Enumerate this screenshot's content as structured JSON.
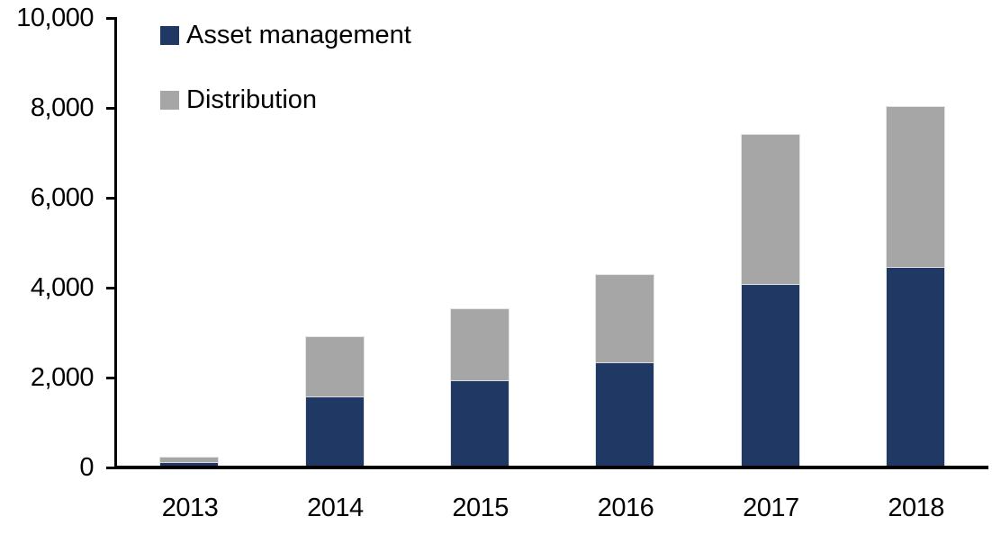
{
  "chart_data": {
    "type": "bar",
    "variant": "stacked-vertical",
    "title": "",
    "xlabel": "",
    "ylabel": "",
    "categories": [
      "2013",
      "2014",
      "2015",
      "2016",
      "2017",
      "2018"
    ],
    "series": [
      {
        "name": "Asset management",
        "color": "#1F3864",
        "values": [
          80,
          1550,
          1900,
          2300,
          4040,
          4420
        ]
      },
      {
        "name": "Distribution",
        "color": "#A6A6A6",
        "values": [
          110,
          1320,
          1600,
          1950,
          3340,
          3580
        ]
      }
    ],
    "stacked_totals": [
      190,
      2870,
      3500,
      4250,
      7380,
      8000
    ],
    "ylim": [
      0,
      10000
    ],
    "ytick_step": 2000,
    "ytick_labels": [
      "0",
      "2,000",
      "4,000",
      "6,000",
      "8,000",
      "10,000"
    ],
    "grid": false,
    "legend_position": "top-left",
    "axis_color": "#000000",
    "background_color": "#FFFFFF",
    "bar_border_color": "#E4E4E4"
  }
}
